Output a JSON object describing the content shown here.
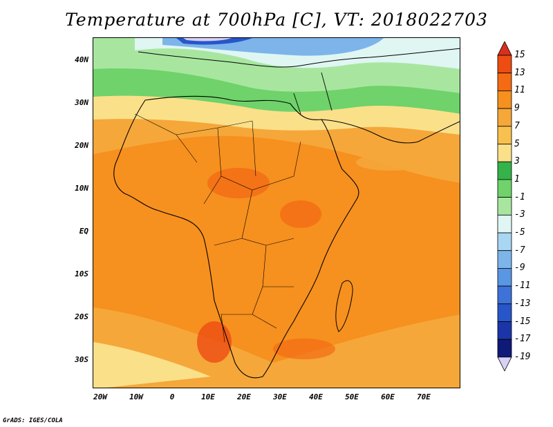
{
  "title": "Temperature at 700hPa [C], VT: 2018022703",
  "credit": "GrADS: IGES/COLA",
  "lat_labels": [
    "40N",
    "30N",
    "20N",
    "10N",
    "EQ",
    "10S",
    "20S",
    "30S"
  ],
  "lon_labels": [
    "20W",
    "10W",
    "0",
    "10E",
    "20E",
    "30E",
    "40E",
    "50E",
    "60E",
    "70E"
  ],
  "map_extent": {
    "lon": [
      -22,
      80
    ],
    "lat": [
      -37,
      45
    ]
  },
  "colorbar": {
    "labels": [
      "15",
      "13",
      "11",
      "9",
      "7",
      "5",
      "3",
      "1",
      "-1",
      "-3",
      "-5",
      "-7",
      "-9",
      "-11",
      "-13",
      "-15",
      "-17",
      "-19"
    ],
    "colors": [
      "#d7301f",
      "#ee4c13",
      "#f46b14",
      "#f6901e",
      "#f5a73a",
      "#f8c14f",
      "#fbe08a",
      "#33b34a",
      "#6fd26a",
      "#a8e6a0",
      "#dff6f3",
      "#a9d6f2",
      "#7db5ea",
      "#5996e3",
      "#3d73d9",
      "#2856c9",
      "#1b35a8",
      "#0f1978",
      "#d8d0f5"
    ]
  }
}
